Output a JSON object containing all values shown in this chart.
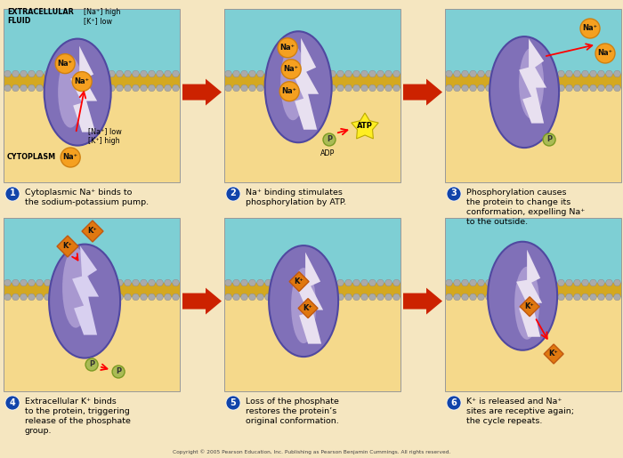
{
  "bg_color": "#F5E6C0",
  "cyan_color": "#7ECFD4",
  "tan_color": "#F5D98B",
  "membrane_yellow": "#D4A820",
  "membrane_gray": "#AAAAAA",
  "protein_purple": "#7B6EA8",
  "protein_mid": "#9085C0",
  "protein_light": "#C0B0E0",
  "na_color": "#F5A020",
  "na_edge": "#D08010",
  "k_color": "#E07810",
  "k_edge": "#C05810",
  "arrow_red": "#CC2200",
  "p_green": "#AABB55",
  "p_edge": "#7A9A22",
  "text_color": "#000000",
  "number_blue": "#1144AA",
  "caption1": "Cytoplasmic Na⁺ binds to\nthe sodium-potassium pump.",
  "caption2": "Na⁺ binding stimulates\nphosphorylation by ATP.",
  "caption3": "Phosphorylation causes\nthe protein to change its\nconformation, expelling Na⁺\nto the outside.",
  "caption4": "Extracellular K⁺ binds\nto the protein, triggering\nrelease of the phosphate\ngroup.",
  "caption5": "Loss of the phosphate\nrestores the protein’s\noriginal conformation.",
  "caption6": "K⁺ is released and Na⁺\nsites are receptive again;\nthe cycle repeats.",
  "copyright": "Copyright © 2005 Pearson Education, Inc. Publishing as Pearson Benjamin Cummings. All rights reserved."
}
